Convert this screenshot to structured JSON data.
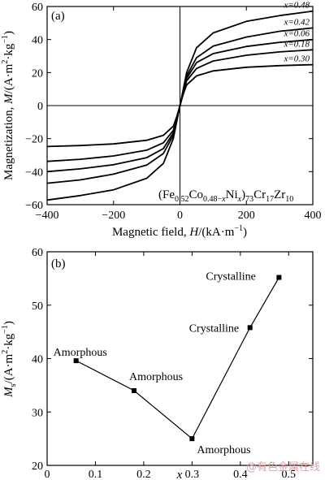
{
  "chart_data": [
    {
      "panel": "(a)",
      "type": "line",
      "formula": "(Fe0.52Co0.48-xNix)73Cr17Zr10",
      "xlabel": "Magnetic field, H/(kA·m⁻¹)",
      "ylabel": "Magnetization, M/(A·m²·kg⁻¹)",
      "xlim": [
        -400,
        400
      ],
      "ylim": [
        -60,
        60
      ],
      "xticks": [
        -400,
        -200,
        0,
        200,
        400
      ],
      "yticks": [
        -60,
        -40,
        -20,
        0,
        20,
        40,
        60
      ],
      "zero_lines": true,
      "series": [
        {
          "name": "x=0.48",
          "x": [
            -400,
            -300,
            -200,
            -100,
            -50,
            -20,
            -10,
            0,
            10,
            20,
            50,
            100,
            200,
            300,
            400
          ],
          "y": [
            -57.2,
            -54.5,
            -51.0,
            -44.0,
            -35.0,
            -20.0,
            -10.0,
            0,
            10.0,
            20.0,
            35.0,
            44.0,
            51.0,
            54.5,
            57.2
          ]
        },
        {
          "name": "x=0.42",
          "x": [
            -400,
            -300,
            -200,
            -100,
            -50,
            -20,
            -10,
            0,
            10,
            20,
            50,
            100,
            200,
            300,
            400
          ],
          "y": [
            -47.0,
            -45.0,
            -41.5,
            -36.0,
            -29.0,
            -18.0,
            -9.0,
            0,
            9.0,
            18.0,
            29.0,
            36.0,
            41.5,
            45.0,
            47.0
          ]
        },
        {
          "name": "x=0.06",
          "x": [
            -400,
            -300,
            -200,
            -100,
            -50,
            -20,
            -10,
            0,
            10,
            20,
            50,
            100,
            200,
            300,
            400
          ],
          "y": [
            -40.0,
            -38.3,
            -35.8,
            -31.5,
            -26.0,
            -16.5,
            -8.5,
            0,
            8.5,
            16.5,
            26.0,
            31.5,
            35.8,
            38.3,
            40.0
          ]
        },
        {
          "name": "x=0.18",
          "x": [
            -400,
            -300,
            -200,
            -100,
            -50,
            -20,
            -10,
            0,
            10,
            20,
            50,
            100,
            200,
            300,
            400
          ],
          "y": [
            -33.8,
            -32.5,
            -30.5,
            -27.0,
            -22.5,
            -15.0,
            -8.0,
            0,
            8.0,
            15.0,
            22.5,
            27.0,
            30.5,
            32.5,
            33.8
          ]
        },
        {
          "name": "x=0.30",
          "x": [
            -400,
            -300,
            -200,
            -100,
            -50,
            -20,
            -10,
            0,
            10,
            20,
            50,
            100,
            200,
            300,
            400
          ],
          "y": [
            -24.8,
            -24.2,
            -23.2,
            -21.0,
            -18.0,
            -12.5,
            -7.0,
            0,
            7.0,
            12.5,
            18.0,
            21.0,
            23.2,
            24.2,
            24.8
          ]
        }
      ]
    },
    {
      "panel": "(b)",
      "type": "line",
      "xlabel": "x",
      "ylabel": "Ms/(A·m²·kg⁻¹)",
      "xlim": [
        0,
        0.55
      ],
      "ylim": [
        20,
        60
      ],
      "xticks": [
        0,
        0.1,
        0.2,
        0.3,
        0.4,
        0.5
      ],
      "yticks": [
        20,
        30,
        40,
        50,
        60
      ],
      "x": [
        0.06,
        0.18,
        0.3,
        0.42,
        0.48
      ],
      "y": [
        39.6,
        34.0,
        25.0,
        45.8,
        55.2
      ],
      "annotations": [
        "Amorphous",
        "Amorphous",
        "Amorphous",
        "Crystalline",
        "Crystalline"
      ]
    }
  ],
  "watermark": "@有色金属在线"
}
